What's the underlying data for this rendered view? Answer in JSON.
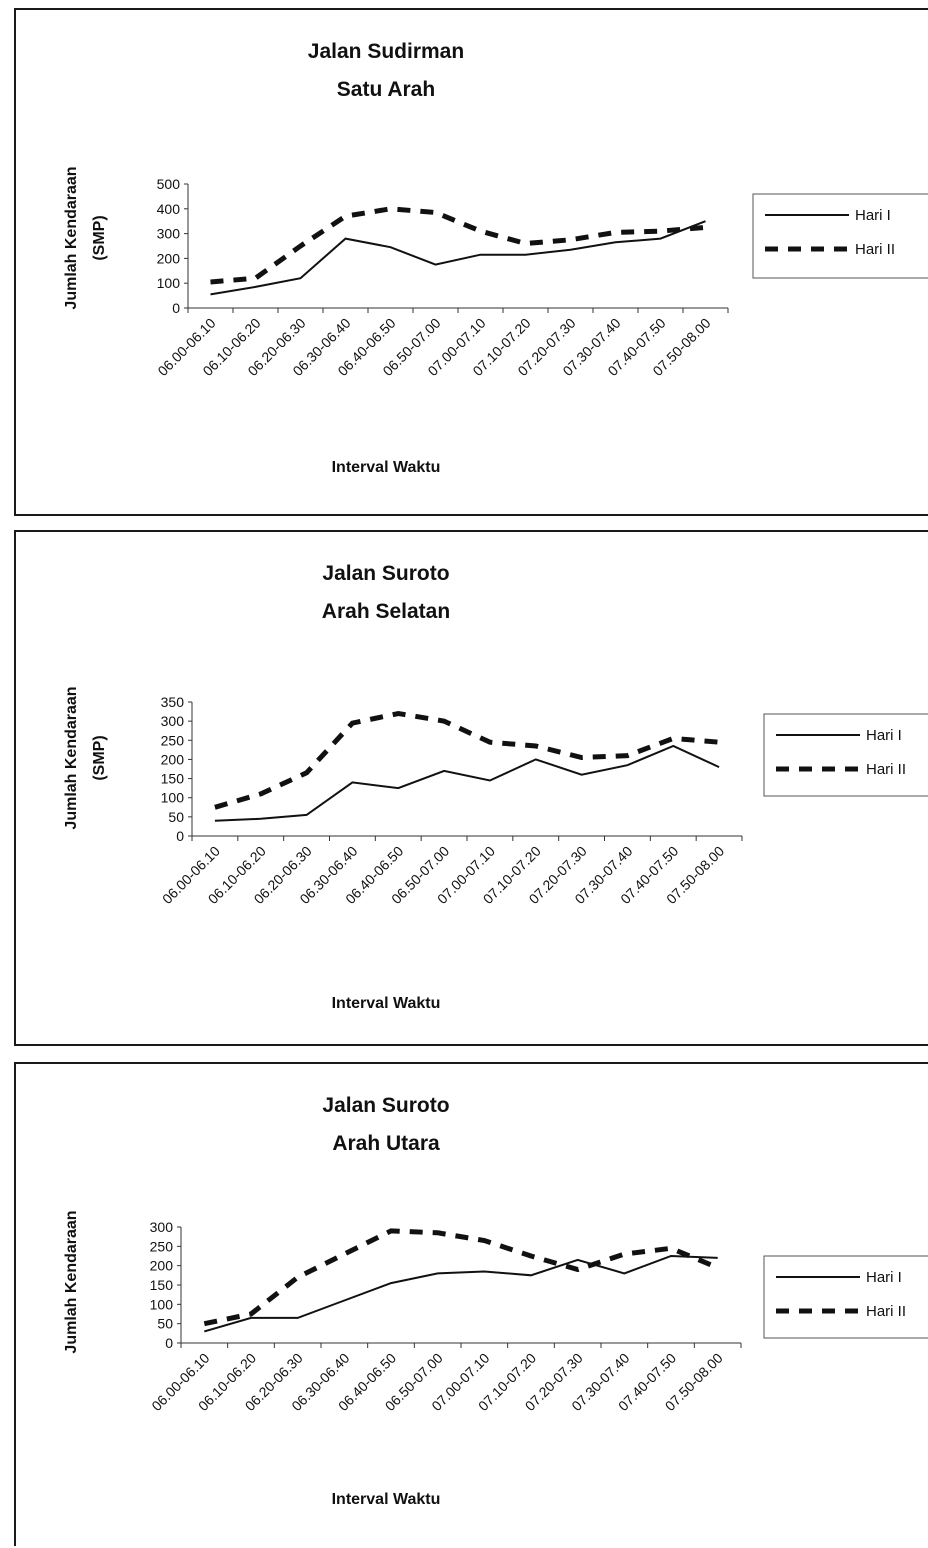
{
  "chart_data": [
    {
      "type": "line",
      "title": "Jalan Sudirman",
      "subtitle": "Satu Arah",
      "xlabel": "Interval Waktu",
      "ylabel": "Jumlah Kendaraan",
      "ylabel_unit": "(SMP)",
      "ylim": [
        0,
        500
      ],
      "yticks": [
        "0",
        "100",
        "200",
        "300",
        "400",
        "500"
      ],
      "categories": [
        "06.00-06.10",
        "06.10-06.20",
        "06.20-06.30",
        "06.30-06.40",
        "06.40-06.50",
        "06.50-07.00",
        "07.00-07.10",
        "07.10-07.20",
        "07.20-07.30",
        "07.30-07.40",
        "07.40-07.50",
        "07.50-08.00"
      ],
      "series": [
        {
          "name": "Hari I",
          "style": "solid",
          "values": [
            55,
            85,
            120,
            280,
            245,
            175,
            215,
            215,
            235,
            265,
            280,
            350
          ]
        },
        {
          "name": "Hari II",
          "style": "dashed",
          "values": [
            105,
            120,
            250,
            370,
            400,
            385,
            310,
            260,
            275,
            305,
            310,
            325
          ]
        }
      ],
      "legend": "right"
    },
    {
      "type": "line",
      "title": "Jalan Suroto",
      "subtitle": "Arah Selatan",
      "xlabel": "Interval Waktu",
      "ylabel": "Jumlah Kendaraan",
      "ylabel_unit": "(SMP)",
      "ylim": [
        0,
        350
      ],
      "yticks": [
        "0",
        "50",
        "100",
        "150",
        "200",
        "250",
        "300",
        "350"
      ],
      "categories": [
        "06.00-06.10",
        "06.10-06.20",
        "06.20-06.30",
        "06.30-06.40",
        "06.40-06.50",
        "06.50-07.00",
        "07.00-07.10",
        "07.10-07.20",
        "07.20-07.30",
        "07.30-07.40",
        "07.40-07.50",
        "07.50-08.00"
      ],
      "series": [
        {
          "name": "Hari I",
          "style": "solid",
          "values": [
            40,
            45,
            55,
            140,
            125,
            170,
            145,
            200,
            160,
            185,
            235,
            180
          ]
        },
        {
          "name": "Hari II",
          "style": "dashed",
          "values": [
            75,
            110,
            165,
            295,
            320,
            300,
            245,
            235,
            205,
            210,
            255,
            245
          ]
        }
      ],
      "legend": "right"
    },
    {
      "type": "line",
      "title": "Jalan Suroto",
      "subtitle": "Arah Utara",
      "xlabel": "Interval Waktu",
      "ylabel": "Jumlah Kendaraan",
      "ylabel_unit": "",
      "ylim": [
        0,
        300
      ],
      "yticks": [
        "0",
        "50",
        "100",
        "150",
        "200",
        "250",
        "300"
      ],
      "categories": [
        "06.00-06.10",
        "06.10-06.20",
        "06.20-06.30",
        "06.30-06.40",
        "06.40-06.50",
        "06.50-07.00",
        "07.00-07.10",
        "07.10-07.20",
        "07.20-07.30",
        "07.30-07.40",
        "07.40-07.50",
        "07.50-08.00"
      ],
      "series": [
        {
          "name": "Hari I",
          "style": "solid",
          "values": [
            30,
            65,
            65,
            110,
            155,
            180,
            185,
            175,
            215,
            180,
            225,
            220
          ]
        },
        {
          "name": "Hari II",
          "style": "dashed",
          "values": [
            50,
            75,
            170,
            230,
            290,
            285,
            265,
            225,
            190,
            230,
            245,
            195
          ]
        }
      ],
      "legend": "right"
    }
  ]
}
